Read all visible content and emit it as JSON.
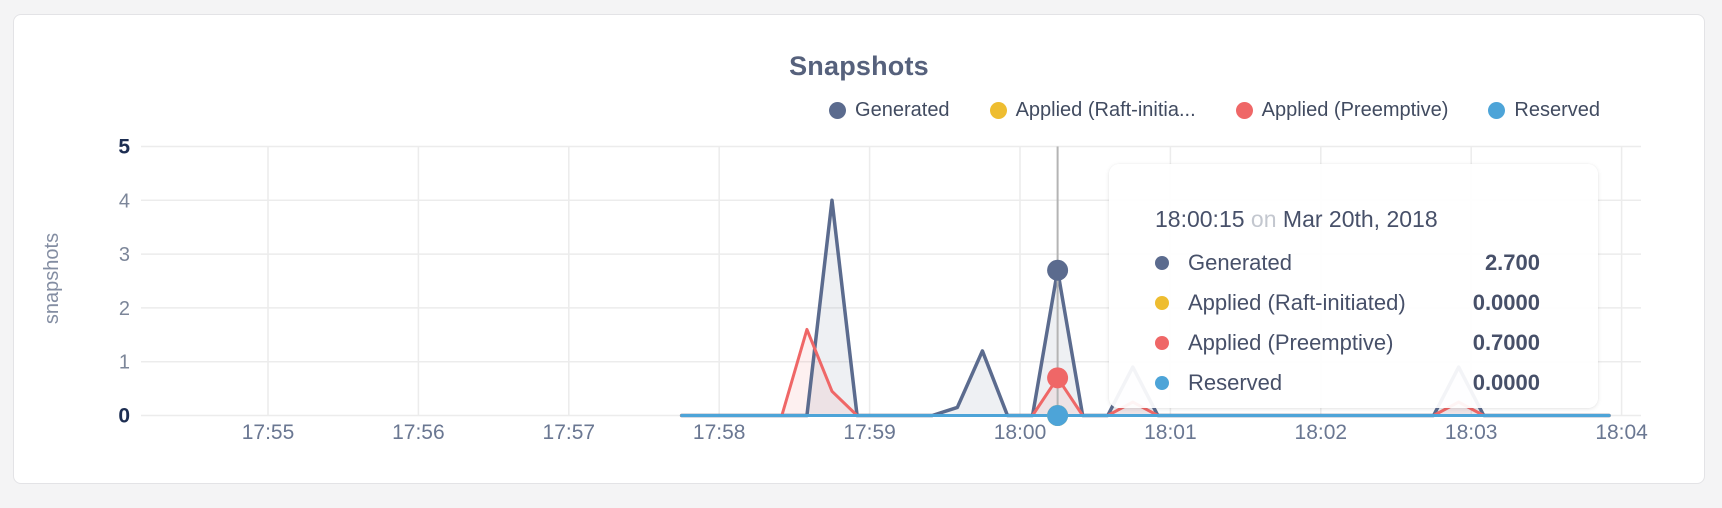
{
  "colors": {
    "generated": "#5b6b8e",
    "raft": "#eebd30",
    "preemptive": "#ef6767",
    "reserved": "#4da4d8",
    "grid": "#ececec",
    "hover_line": "#b4b4b4",
    "generated_fill": "rgba(91,107,142,0.10)",
    "preemptive_fill": "rgba(239,103,103,0.10)"
  },
  "legend": {
    "items": [
      {
        "label": "Generated",
        "color_key": "generated"
      },
      {
        "label": "Applied (Raft-initia...",
        "color_key": "raft"
      },
      {
        "label": "Applied (Preemptive)",
        "color_key": "preemptive"
      },
      {
        "label": "Reserved",
        "color_key": "reserved"
      }
    ]
  },
  "tooltip": {
    "time": "18:00:15",
    "on_word": "on",
    "date": "Mar 20th, 2018",
    "rows": [
      {
        "label": "Generated",
        "value": "2.700",
        "color_key": "generated"
      },
      {
        "label": "Applied (Raft-initiated)",
        "value": "0.0000",
        "color_key": "raft"
      },
      {
        "label": "Applied (Preemptive)",
        "value": "0.7000",
        "color_key": "preemptive"
      },
      {
        "label": "Reserved",
        "value": "0.0000",
        "color_key": "reserved"
      }
    ]
  },
  "chart_data": {
    "type": "line",
    "title": "Snapshots",
    "ylabel": "snapshots",
    "xlabel": "",
    "grid": true,
    "legend_position": "top-right",
    "x_ticks": [
      "17:55",
      "17:56",
      "17:57",
      "17:58",
      "17:59",
      "18:00",
      "18:01",
      "18:02",
      "18:03",
      "18:04"
    ],
    "y_ticks": [
      0,
      1,
      2,
      3,
      4,
      5
    ],
    "ylim": [
      0,
      5
    ],
    "sample_interval_seconds": 10,
    "times": [
      "17:57:45",
      "17:57:55",
      "17:58:05",
      "17:58:15",
      "17:58:25",
      "17:58:35",
      "17:58:45",
      "17:58:55",
      "17:59:05",
      "17:59:15",
      "17:59:25",
      "17:59:35",
      "17:59:45",
      "17:59:55",
      "18:00:05",
      "18:00:15",
      "18:00:25",
      "18:00:35",
      "18:00:45",
      "18:00:55",
      "18:01:05",
      "18:01:15",
      "18:01:25",
      "18:01:35",
      "18:01:45",
      "18:01:55",
      "18:02:05",
      "18:02:15",
      "18:02:25",
      "18:02:35",
      "18:02:45",
      "18:02:55",
      "18:03:05",
      "18:03:15",
      "18:03:25",
      "18:03:35",
      "18:03:45",
      "18:03:55"
    ],
    "series": [
      {
        "name": "Generated",
        "color_key": "generated",
        "fill_key": "generated_fill",
        "stroke_width": 3.5,
        "values": [
          0,
          0,
          0,
          0,
          0,
          0,
          4,
          0,
          0,
          0,
          0,
          0.15,
          1.2,
          0,
          0,
          2.7,
          0,
          0,
          0.9,
          0,
          0,
          0,
          0,
          0,
          0,
          0,
          0,
          0,
          0,
          0,
          0,
          0.9,
          0,
          0,
          0,
          0,
          0,
          0
        ]
      },
      {
        "name": "Applied (Raft-initiated)",
        "color_key": "raft",
        "fill_key": null,
        "stroke_width": 3,
        "values": [
          0,
          0,
          0,
          0,
          0,
          0,
          0,
          0,
          0,
          0,
          0,
          0,
          0,
          0,
          0,
          0,
          0,
          0,
          0,
          0,
          0,
          0,
          0,
          0,
          0,
          0,
          0,
          0,
          0,
          0,
          0,
          0,
          0,
          0,
          0,
          0,
          0,
          0
        ]
      },
      {
        "name": "Applied (Preemptive)",
        "color_key": "preemptive",
        "fill_key": "preemptive_fill",
        "stroke_width": 3,
        "values": [
          0,
          0,
          0,
          0,
          0,
          1.6,
          0.45,
          0,
          0,
          0,
          0,
          0,
          0,
          0,
          0,
          0.7,
          0,
          0,
          0.25,
          0,
          0,
          0,
          0,
          0,
          0,
          0,
          0,
          0,
          0,
          0,
          0,
          0.25,
          0,
          0,
          0,
          0,
          0,
          0
        ]
      },
      {
        "name": "Reserved",
        "color_key": "reserved",
        "fill_key": null,
        "stroke_width": 3,
        "values": [
          0,
          0,
          0,
          0,
          0,
          0,
          0,
          0,
          0,
          0,
          0,
          0,
          0,
          0,
          0,
          0,
          0,
          0,
          0,
          0,
          0,
          0,
          0,
          0,
          0,
          0,
          0,
          0,
          0,
          0,
          0,
          0,
          0,
          0,
          0,
          0,
          0,
          0
        ]
      }
    ],
    "hover": {
      "time": "18:00:15",
      "values": [
        2.7,
        0,
        0.7,
        0
      ]
    }
  }
}
